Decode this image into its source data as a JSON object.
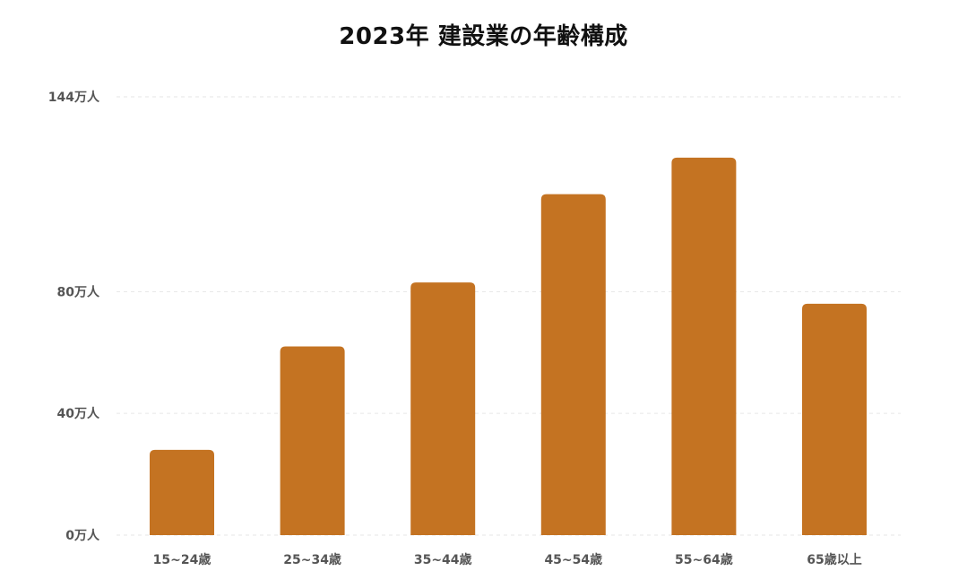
{
  "chart_data": {
    "type": "bar",
    "title": "2023年 建設業の年齢構成",
    "xlabel": "",
    "ylabel": "",
    "categories": [
      "15~24歳",
      "25~34歳",
      "35~44歳",
      "45~54歳",
      "55~64歳",
      "65歳以上"
    ],
    "values": [
      28,
      62,
      83,
      112,
      124,
      76
    ],
    "value_unit": "万人",
    "yticks": [
      0,
      40,
      80,
      144
    ],
    "ytick_labels": [
      "0万人",
      "40万人",
      "80万人",
      "144万人"
    ],
    "ylim": [
      0,
      144
    ],
    "grid": true,
    "legend": "none",
    "bar_color": "#c47322",
    "grid_color": "#e6e6e6"
  }
}
